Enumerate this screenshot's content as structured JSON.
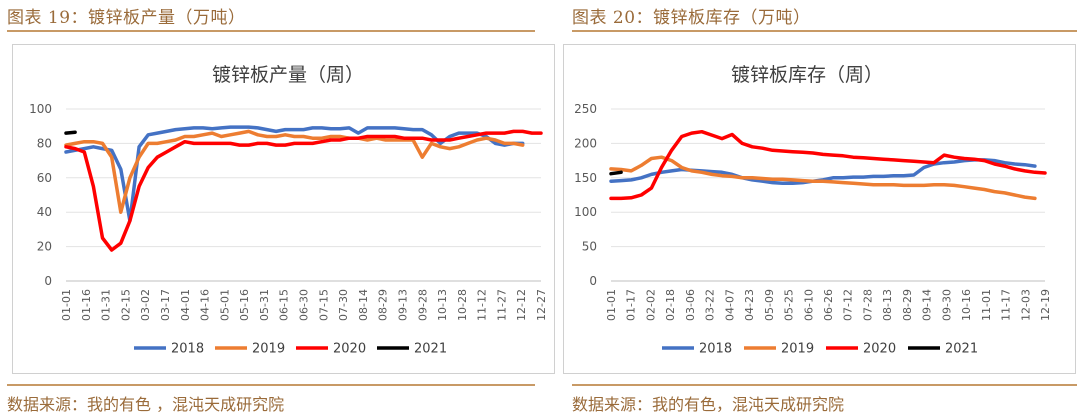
{
  "left": {
    "fig_title": "图表 19：镀锌板产量（万吨）",
    "source": "数据来源：我的有色 ，混沌天成研究院"
  },
  "right": {
    "fig_title": "图表 20：镀锌板库存（万吨）",
    "source": "数据来源：我的有色，混沌天成研究院"
  },
  "chart_data": [
    {
      "type": "line",
      "title": "镀锌板产量（周）",
      "xlabel": "",
      "ylabel": "",
      "ylim": [
        0,
        100
      ],
      "yticks": [
        0,
        20,
        40,
        60,
        80,
        100
      ],
      "x_tick_labels": [
        "01-01",
        "01-16",
        "01-31",
        "02-15",
        "03-02",
        "03-17",
        "04-01",
        "04-16",
        "05-01",
        "05-16",
        "05-31",
        "06-15",
        "06-30",
        "07-15",
        "07-30",
        "08-14",
        "08-29",
        "09-13",
        "09-28",
        "10-13",
        "10-28",
        "11-12",
        "11-27",
        "12-12",
        "12-27"
      ],
      "grid": true,
      "legend": "bottom",
      "series": [
        {
          "name": "2018",
          "color": "#4472c4",
          "start": 0,
          "values": [
            75,
            76,
            77,
            78,
            77,
            76,
            65,
            35,
            78,
            85,
            86,
            87,
            88,
            88.5,
            89,
            89,
            88.5,
            89,
            89.5,
            89.5,
            89.5,
            89,
            88,
            87,
            88,
            88,
            88,
            89,
            89,
            88.5,
            88.5,
            89,
            86,
            89,
            89,
            89,
            89,
            88.5,
            88,
            88,
            85,
            80,
            84,
            86,
            86,
            86,
            84,
            80,
            79,
            80,
            80
          ]
        },
        {
          "name": "2019",
          "color": "#ed7d31",
          "start": 0,
          "values": [
            79,
            80,
            81,
            81,
            80,
            72,
            40,
            60,
            72,
            80,
            80,
            81,
            82,
            84,
            84,
            85,
            86,
            84,
            85,
            86,
            87,
            85,
            84,
            84,
            85,
            84,
            84,
            83,
            83,
            84,
            84,
            83,
            83,
            82,
            83,
            82,
            82,
            82,
            82,
            72,
            80,
            78,
            77,
            78,
            80,
            82,
            83,
            82,
            80,
            80,
            79
          ]
        },
        {
          "name": "2020",
          "color": "#ff0000",
          "start": 0,
          "values": [
            78,
            77,
            75,
            55,
            25,
            18,
            22,
            35,
            55,
            66,
            72,
            75,
            78,
            81,
            80,
            80,
            80,
            80,
            80,
            79,
            79,
            80,
            80,
            79,
            79,
            80,
            80,
            80,
            81,
            82,
            82,
            83,
            83,
            84,
            84,
            84,
            84,
            83,
            83,
            83,
            82,
            82,
            82,
            83,
            84,
            85,
            86,
            86,
            86,
            87,
            87,
            86,
            86
          ]
        },
        {
          "name": "2021",
          "color": "#000000",
          "start": 0,
          "values": [
            86,
            86.5
          ]
        }
      ]
    },
    {
      "type": "line",
      "title": "镀锌板库存（周）",
      "xlabel": "",
      "ylabel": "",
      "ylim": [
        0,
        250
      ],
      "yticks": [
        0,
        50,
        100,
        150,
        200,
        250
      ],
      "x_tick_labels": [
        "01-01",
        "01-17",
        "02-02",
        "02-18",
        "03-06",
        "03-22",
        "04-07",
        "04-23",
        "05-09",
        "05-25",
        "06-10",
        "06-26",
        "07-12",
        "07-28",
        "08-13",
        "08-29",
        "09-14",
        "09-30",
        "10-16",
        "11-01",
        "11-17",
        "12-03",
        "12-19"
      ],
      "grid": true,
      "legend": "bottom",
      "series": [
        {
          "name": "2018",
          "color": "#4472c4",
          "start": 0,
          "values": [
            145,
            146,
            147,
            150,
            155,
            158,
            160,
            162,
            161,
            160,
            159,
            158,
            155,
            150,
            147,
            145,
            143,
            142,
            142,
            143,
            145,
            147,
            150,
            150,
            151,
            151,
            152,
            152,
            153,
            153,
            154,
            165,
            170,
            172,
            173,
            175,
            176,
            176,
            175,
            172,
            170,
            169,
            167
          ]
        },
        {
          "name": "2019",
          "color": "#ed7d31",
          "start": 0,
          "values": [
            163,
            162,
            160,
            168,
            178,
            180,
            175,
            165,
            160,
            158,
            155,
            153,
            152,
            150,
            150,
            149,
            148,
            148,
            147,
            146,
            145,
            145,
            144,
            143,
            142,
            141,
            140,
            140,
            140,
            139,
            139,
            139,
            140,
            140,
            139,
            137,
            135,
            133,
            130,
            128,
            125,
            122,
            120
          ]
        },
        {
          "name": "2020",
          "color": "#ff0000",
          "start": 0,
          "values": [
            120,
            120,
            121,
            125,
            135,
            165,
            190,
            210,
            215,
            217,
            212,
            207,
            213,
            200,
            195,
            193,
            190,
            189,
            188,
            187,
            186,
            184,
            183,
            182,
            180,
            179,
            178,
            177,
            176,
            175,
            174,
            173,
            172,
            183,
            180,
            178,
            177,
            175,
            170,
            167,
            163,
            160,
            158,
            157
          ]
        },
        {
          "name": "2021",
          "color": "#000000",
          "start": 0,
          "values": [
            156,
            158
          ]
        }
      ]
    }
  ]
}
